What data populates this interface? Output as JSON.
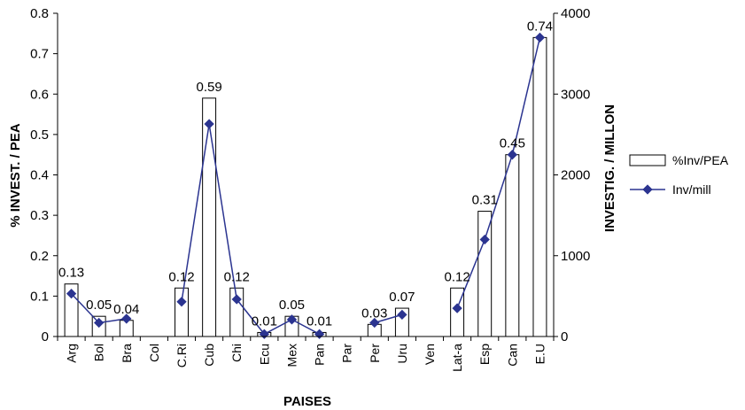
{
  "chart_data": {
    "type": "bar",
    "categories": [
      "Arg",
      "Bol",
      "Bra",
      "Col",
      "C.Ri",
      "Cub",
      "Chi",
      "Ecu",
      "Mex",
      "Pan",
      "Par",
      "Per",
      "Uru",
      "Ven",
      "Lat-a",
      "Esp",
      "Can",
      "E.U"
    ],
    "series": [
      {
        "name": "%Inv/PEA",
        "type": "bar",
        "axis": "left",
        "values": [
          0.13,
          0.05,
          0.04,
          null,
          0.12,
          0.59,
          0.12,
          0.01,
          0.05,
          0.01,
          null,
          0.03,
          0.07,
          null,
          0.12,
          0.31,
          0.45,
          0.74
        ],
        "labels": [
          "0.13",
          "0.05",
          "0.04",
          "",
          "0.12",
          "0.59",
          "0.12",
          "0.01",
          "0.05",
          "0.01",
          "",
          "0.03",
          "0.07",
          "",
          "0.12",
          "0.31",
          "0.45",
          "0.74"
        ]
      },
      {
        "name": "Inv/mill",
        "type": "line",
        "axis": "right",
        "values": [
          530,
          170,
          220,
          null,
          430,
          2630,
          460,
          30,
          210,
          30,
          null,
          170,
          270,
          null,
          350,
          1200,
          2250,
          3700
        ]
      }
    ],
    "xlabel": "PAISES",
    "ylabel": "% INVEST. / PEA",
    "ylabel_right": "INVESTIG. / MILLON",
    "ylim": [
      0,
      0.8
    ],
    "ylim_right": [
      0,
      4000
    ],
    "yticks": [
      "0",
      "0.1",
      "0.2",
      "0.3",
      "0.4",
      "0.5",
      "0.6",
      "0.7",
      "0.8"
    ],
    "yticks_right": [
      "0",
      "1000",
      "2000",
      "3000",
      "4000"
    ],
    "grid": false,
    "legend_position": "right",
    "colors": {
      "bar_fill": "#ffffff",
      "bar_stroke": "#000000",
      "line": "#2b3490",
      "marker": "#2b3490"
    }
  }
}
